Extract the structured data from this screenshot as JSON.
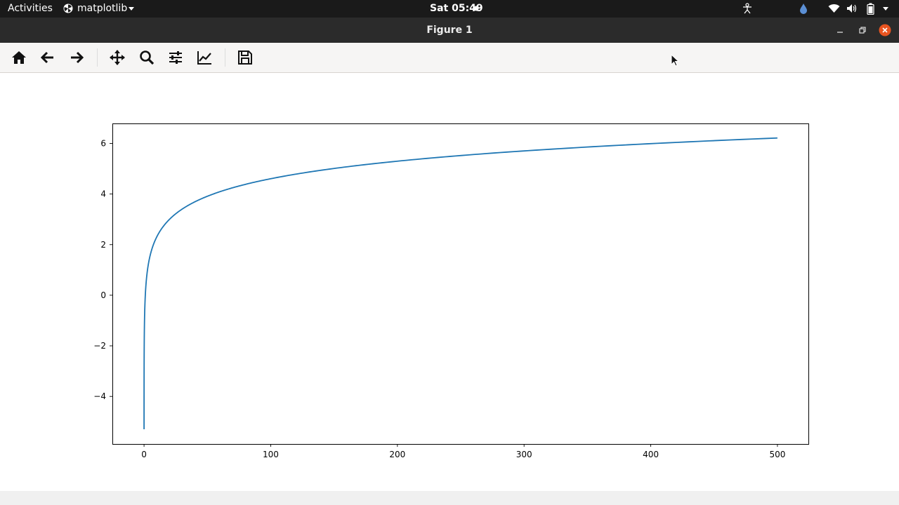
{
  "topbar": {
    "activities": "Activities",
    "app_name": "matplotlib",
    "clock": "Sat 05:49"
  },
  "window": {
    "title": "Figure 1"
  },
  "toolbar": {
    "tools": [
      "home-icon",
      "back-arrow-icon",
      "forward-arrow-icon",
      "pan-move-icon",
      "zoom-magnifier-icon",
      "configure-subplots-icon",
      "edit-axis-curve-icon",
      "save-disk-icon"
    ]
  },
  "colors": {
    "line": "#1f77b4",
    "topbar": "#1a1a1a",
    "titlebar": "#2b2b2b",
    "close": "#e95420"
  },
  "chart_data": {
    "type": "line",
    "function_shape": "y = ln(x)",
    "x": [
      0.005,
      0.1,
      0.5,
      1,
      2,
      5,
      10,
      20,
      30,
      50,
      75,
      100,
      150,
      200,
      250,
      300,
      350,
      400,
      450,
      500
    ],
    "y": [
      -5.3,
      -2.3,
      -0.69,
      0.0,
      0.69,
      1.61,
      2.3,
      3.0,
      3.4,
      3.91,
      4.32,
      4.61,
      5.01,
      5.3,
      5.52,
      5.7,
      5.86,
      5.99,
      6.11,
      6.21
    ],
    "xlim": [
      -25,
      525
    ],
    "ylim": [
      -5.88,
      6.79
    ],
    "xticks": [
      0,
      100,
      200,
      300,
      400,
      500
    ],
    "yticks": [
      -4,
      -2,
      0,
      2,
      4,
      6
    ],
    "xtick_labels": [
      "0",
      "100",
      "200",
      "300",
      "400",
      "500"
    ],
    "ytick_labels": [
      "−4",
      "−2",
      "0",
      "2",
      "4",
      "6"
    ],
    "title": "",
    "xlabel": "",
    "ylabel": "",
    "grid": false,
    "legend": "none"
  }
}
